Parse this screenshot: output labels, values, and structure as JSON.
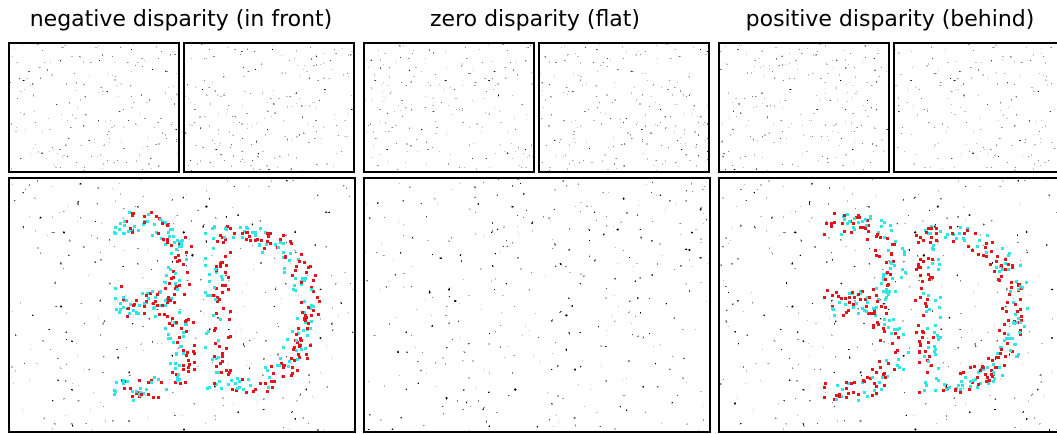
{
  "panels": [
    {
      "title": "negative disparity (in front)"
    },
    {
      "title": "zero disparity (flat)"
    },
    {
      "title": "positive disparity (behind)"
    }
  ]
}
